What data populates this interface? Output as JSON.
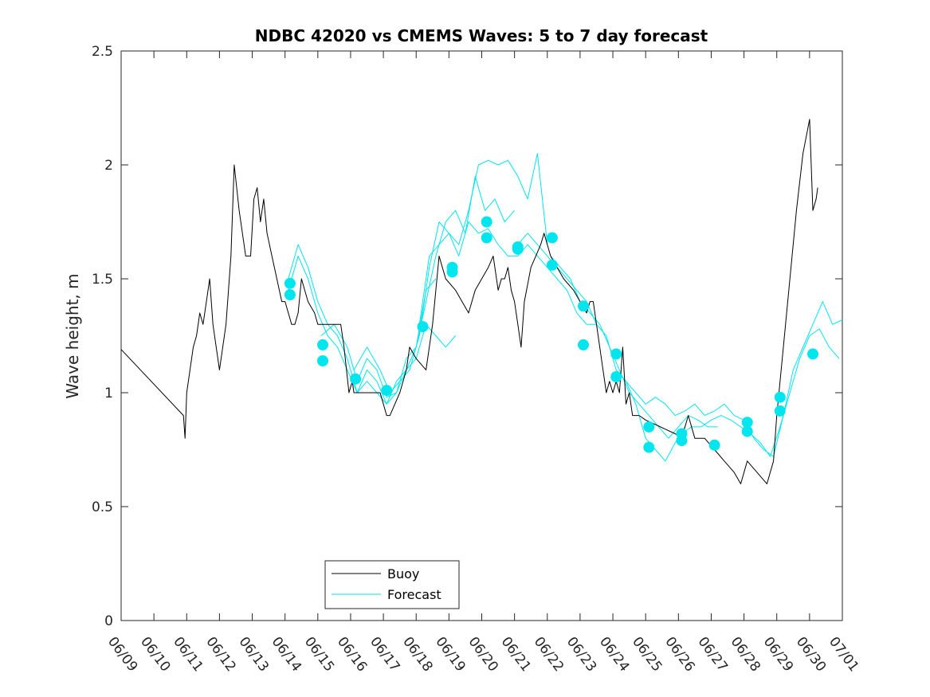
{
  "chart_data": {
    "type": "line",
    "title": "NDBC 42020 vs CMEMS Waves: 5 to 7 day forecast",
    "xlabel": "",
    "ylabel": "Wave height, m",
    "xlim": [
      9,
      31
    ],
    "ylim": [
      0,
      2.5
    ],
    "yticks": [
      0,
      0.5,
      1,
      1.5,
      2,
      2.5
    ],
    "ytick_labels": [
      "0",
      "0.5",
      "1",
      "1.5",
      "2",
      "2.5"
    ],
    "xtick_labels": [
      "06/09",
      "06/10",
      "06/11",
      "06/12",
      "06/13",
      "06/14",
      "06/15",
      "06/16",
      "06/17",
      "06/18",
      "06/19",
      "06/20",
      "06/21",
      "06/22",
      "06/23",
      "06/24",
      "06/25",
      "06/26",
      "06/27",
      "06/28",
      "06/29",
      "06/30",
      "07/01"
    ],
    "grid": false,
    "legend": {
      "position": "bottom-center",
      "entries": [
        "Buoy",
        "Forecast"
      ]
    },
    "colors": {
      "buoy": "#000000",
      "forecast": "#00e5ee",
      "markers": "#00e5ee"
    },
    "series": [
      {
        "name": "Buoy",
        "style": "line",
        "x": [
          9.0,
          10.9,
          10.95,
          11.0,
          11.1,
          11.2,
          11.3,
          11.4,
          11.5,
          11.6,
          11.7,
          11.8,
          11.9,
          12.0,
          12.2,
          12.35,
          12.45,
          12.6,
          12.8,
          12.95,
          13.05,
          13.15,
          13.25,
          13.35,
          13.45,
          13.6,
          13.75,
          13.9,
          14.0,
          14.1,
          14.2,
          14.3,
          14.4,
          14.5,
          14.7,
          14.9,
          15.0,
          15.1,
          15.2,
          15.3,
          15.5,
          15.7,
          15.8,
          15.95,
          16.05,
          16.1,
          16.2,
          16.4,
          16.7,
          16.9,
          17.0,
          17.1,
          17.2,
          17.5,
          17.7,
          17.8,
          18.0,
          18.3,
          18.5,
          18.6,
          18.7,
          18.8,
          18.9,
          19.2,
          19.4,
          19.6,
          19.8,
          20.0,
          20.2,
          20.35,
          20.5,
          20.6,
          20.7,
          20.8,
          20.9,
          21.0,
          21.1,
          21.2,
          21.3,
          21.5,
          21.65,
          21.8,
          21.9,
          22.0,
          22.1,
          22.3,
          22.5,
          22.8,
          23.0,
          23.2,
          23.3,
          23.4,
          23.5,
          23.6,
          23.7,
          23.8,
          23.9,
          24.0,
          24.1,
          24.2,
          24.3,
          24.4,
          24.5,
          24.6,
          24.7,
          24.8,
          25.0,
          25.3,
          25.6,
          25.9,
          26.1,
          26.3,
          26.5,
          26.8,
          27.1,
          27.4,
          27.7,
          27.9,
          28.1,
          28.4,
          28.7,
          28.9,
          29.0,
          29.2,
          29.4,
          29.6,
          29.8,
          30.0,
          30.1,
          30.2,
          30.25
        ],
        "values": [
          1.19,
          0.9,
          0.8,
          1.0,
          1.1,
          1.2,
          1.25,
          1.35,
          1.3,
          1.4,
          1.5,
          1.3,
          1.2,
          1.1,
          1.3,
          1.6,
          2.0,
          1.8,
          1.6,
          1.6,
          1.85,
          1.9,
          1.75,
          1.85,
          1.7,
          1.6,
          1.5,
          1.4,
          1.4,
          1.35,
          1.3,
          1.3,
          1.35,
          1.5,
          1.4,
          1.35,
          1.3,
          1.3,
          1.3,
          1.3,
          1.3,
          1.3,
          1.2,
          1.0,
          1.05,
          1.0,
          1.0,
          1.0,
          1.0,
          1.0,
          0.95,
          0.9,
          0.9,
          1.0,
          1.1,
          1.2,
          1.15,
          1.1,
          1.3,
          1.45,
          1.6,
          1.55,
          1.5,
          1.45,
          1.4,
          1.35,
          1.45,
          1.5,
          1.55,
          1.6,
          1.45,
          1.5,
          1.5,
          1.55,
          1.45,
          1.4,
          1.3,
          1.2,
          1.4,
          1.55,
          1.6,
          1.65,
          1.7,
          1.65,
          1.6,
          1.55,
          1.5,
          1.45,
          1.4,
          1.35,
          1.4,
          1.4,
          1.3,
          1.2,
          1.1,
          1.0,
          1.05,
          1.0,
          1.05,
          1.0,
          1.2,
          0.95,
          1.0,
          0.9,
          0.9,
          0.9,
          0.88,
          0.86,
          0.84,
          0.82,
          0.8,
          0.9,
          0.8,
          0.8,
          0.75,
          0.7,
          0.65,
          0.6,
          0.7,
          0.65,
          0.6,
          0.7,
          0.9,
          1.2,
          1.5,
          1.8,
          2.05,
          2.2,
          1.8,
          1.85,
          1.9
        ]
      },
      {
        "name": "Forecast",
        "style": "line",
        "x": [
          14.1,
          14.4,
          14.7,
          15.0,
          15.3,
          15.6,
          15.9,
          16.2,
          16.5,
          16.8,
          17.1,
          17.4,
          17.7,
          18.0,
          18.3,
          18.6
        ],
        "values": [
          1.5,
          1.65,
          1.55,
          1.4,
          1.3,
          1.25,
          1.15,
          1.0,
          1.05,
          1.0,
          0.95,
          1.05,
          1.1,
          1.2,
          1.45,
          1.5
        ]
      },
      {
        "name": "",
        "style": "line",
        "x": [
          14.1,
          14.4,
          14.7,
          15.0,
          15.3,
          15.6,
          15.9,
          16.2,
          16.5,
          16.8,
          17.1,
          17.4,
          17.7,
          18.0,
          18.3,
          18.6,
          18.9,
          19.2
        ],
        "values": [
          1.45,
          1.6,
          1.5,
          1.35,
          1.25,
          1.2,
          1.1,
          1.0,
          1.1,
          1.05,
          0.95,
          1.0,
          1.1,
          1.15,
          1.3,
          1.25,
          1.2,
          1.25
        ]
      },
      {
        "name": "",
        "style": "line",
        "x": [
          15.1,
          15.5,
          15.9,
          16.2,
          16.5,
          16.8,
          17.1,
          17.4,
          17.7,
          18.0,
          18.3,
          18.6,
          18.9,
          19.2,
          19.5,
          19.8,
          20.1,
          20.4,
          20.7,
          21.0
        ],
        "values": [
          1.25,
          1.3,
          1.2,
          1.05,
          1.15,
          1.1,
          0.98,
          1.0,
          1.15,
          1.2,
          1.4,
          1.6,
          1.75,
          1.8,
          1.7,
          1.95,
          1.8,
          1.85,
          1.75,
          1.8
        ]
      },
      {
        "name": "",
        "style": "line",
        "x": [
          16.1,
          16.5,
          16.9,
          17.2,
          17.5,
          17.8,
          18.1,
          18.4,
          18.7,
          19.0,
          19.3,
          19.6,
          19.9,
          20.2,
          20.5,
          20.8,
          21.1,
          21.4,
          21.7,
          22.0
        ],
        "values": [
          1.1,
          1.2,
          1.1,
          1.0,
          1.05,
          1.1,
          1.25,
          1.55,
          1.75,
          1.7,
          1.65,
          1.8,
          2.0,
          2.02,
          2.0,
          2.02,
          1.95,
          1.85,
          2.05,
          1.65
        ]
      },
      {
        "name": "",
        "style": "line",
        "x": [
          18.1,
          18.4,
          18.7,
          19.0,
          19.3,
          19.6,
          19.9,
          20.2,
          20.5,
          20.8,
          21.1,
          21.4,
          21.7,
          22.0,
          22.3,
          22.6,
          22.9,
          23.2,
          23.5
        ],
        "values": [
          1.3,
          1.6,
          1.65,
          1.7,
          1.6,
          1.75,
          1.7,
          1.72,
          1.65,
          1.6,
          1.6,
          1.65,
          1.6,
          1.55,
          1.5,
          1.45,
          1.35,
          1.3,
          1.3
        ]
      },
      {
        "name": "",
        "style": "line",
        "x": [
          21.1,
          21.4,
          21.7,
          22.0,
          22.3,
          22.6,
          22.9,
          23.2,
          23.5,
          23.8,
          24.1,
          24.4,
          24.7,
          25.0,
          25.3,
          25.6,
          25.9,
          26.2
        ],
        "values": [
          1.65,
          1.7,
          1.65,
          1.6,
          1.55,
          1.5,
          1.45,
          1.4,
          1.3,
          1.25,
          1.1,
          1.05,
          0.95,
          0.8,
          0.75,
          0.7,
          0.78,
          0.85
        ]
      },
      {
        "name": "",
        "style": "line",
        "x": [
          22.1,
          22.4,
          22.7,
          23.0,
          23.3,
          23.6,
          23.9,
          24.2,
          24.5,
          24.8,
          25.1,
          25.4,
          25.7,
          26.0,
          26.3,
          26.6,
          26.9,
          27.2
        ],
        "values": [
          1.6,
          1.55,
          1.5,
          1.4,
          1.35,
          1.3,
          1.2,
          1.1,
          1.0,
          0.95,
          0.9,
          0.85,
          0.8,
          0.85,
          0.9,
          0.88,
          0.85,
          0.85
        ]
      },
      {
        "name": "",
        "style": "line",
        "x": [
          24.1,
          24.4,
          24.7,
          25.0,
          25.3,
          25.6,
          25.9,
          26.2,
          26.5,
          26.8,
          27.1,
          27.4,
          27.7,
          28.0,
          28.3,
          28.6,
          28.9,
          29.2,
          29.5,
          29.8,
          30.1,
          30.4,
          30.7,
          31.0
        ],
        "values": [
          1.1,
          1.05,
          1.0,
          0.95,
          0.98,
          0.95,
          0.9,
          0.92,
          0.95,
          0.9,
          0.92,
          0.95,
          0.9,
          0.88,
          0.8,
          0.75,
          0.72,
          0.9,
          1.1,
          1.2,
          1.3,
          1.4,
          1.3,
          1.32
        ]
      },
      {
        "name": "",
        "style": "line",
        "x": [
          26.1,
          26.4,
          26.7,
          27.0,
          27.3,
          27.6,
          27.9,
          28.2,
          28.5,
          28.8,
          29.1,
          29.4,
          29.7,
          30.0,
          30.3,
          30.6,
          30.9
        ],
        "values": [
          0.82,
          0.85,
          0.85,
          0.88,
          0.9,
          0.88,
          0.85,
          0.82,
          0.78,
          0.72,
          0.85,
          1.0,
          1.15,
          1.25,
          1.28,
          1.2,
          1.15
        ]
      },
      {
        "name": "",
        "style": "markers",
        "x": [
          14.15,
          14.15,
          15.15,
          15.15,
          16.15,
          17.1,
          18.2,
          19.1,
          19.1,
          20.15,
          20.15,
          21.1,
          21.1,
          22.15,
          22.15,
          23.1,
          23.1,
          24.1,
          24.1,
          25.1,
          25.1,
          26.1,
          26.1,
          27.1,
          28.1,
          28.1,
          29.1,
          29.1,
          30.1
        ],
        "values": [
          1.48,
          1.43,
          1.21,
          1.14,
          1.06,
          1.01,
          1.29,
          1.55,
          1.53,
          1.75,
          1.68,
          1.64,
          1.63,
          1.68,
          1.56,
          1.38,
          1.21,
          1.17,
          1.07,
          0.85,
          0.76,
          0.82,
          0.79,
          0.77,
          0.87,
          0.83,
          0.98,
          0.92,
          1.17
        ]
      }
    ]
  }
}
